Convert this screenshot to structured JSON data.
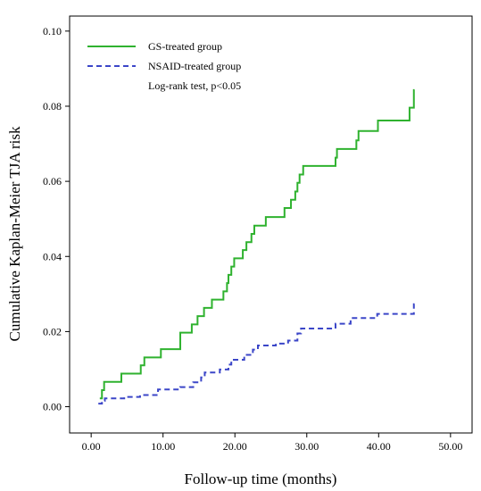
{
  "chart_data": {
    "type": "line",
    "subtype": "step",
    "xlabel": "Follow-up time (months)",
    "ylabel": "Cumulative Kaplan-Meier TJA risk",
    "xlim": [
      -3,
      53
    ],
    "ylim": [
      -0.007,
      0.104
    ],
    "x_ticks": [
      0,
      10,
      20,
      30,
      40,
      50
    ],
    "x_tick_labels": [
      "0.00",
      "10.00",
      "20.00",
      "30.00",
      "40.00",
      "50.00"
    ],
    "y_ticks": [
      0.0,
      0.02,
      0.04,
      0.06,
      0.08,
      0.1
    ],
    "y_tick_labels": [
      "0.00",
      "0.02",
      "0.04",
      "0.06",
      "0.08",
      "0.10"
    ],
    "grid": false,
    "legend_position": "top-left",
    "annotation": "Log-rank test, p<0.05",
    "series": [
      {
        "name": "GS-treated group",
        "color": "#2fb22f",
        "dash": "solid",
        "points": [
          [
            1.2,
            0.0022
          ],
          [
            1.5,
            0.0044
          ],
          [
            1.8,
            0.0066
          ],
          [
            4.2,
            0.0088
          ],
          [
            6.9,
            0.011
          ],
          [
            7.4,
            0.0131
          ],
          [
            9.7,
            0.0153
          ],
          [
            12.4,
            0.0197
          ],
          [
            14.0,
            0.0219
          ],
          [
            14.8,
            0.0241
          ],
          [
            15.7,
            0.0263
          ],
          [
            16.8,
            0.0285
          ],
          [
            18.4,
            0.0307
          ],
          [
            18.9,
            0.0329
          ],
          [
            19.1,
            0.0351
          ],
          [
            19.5,
            0.0373
          ],
          [
            19.9,
            0.0395
          ],
          [
            21.1,
            0.0417
          ],
          [
            21.6,
            0.0438
          ],
          [
            22.3,
            0.046
          ],
          [
            22.7,
            0.0482
          ],
          [
            24.3,
            0.0505
          ],
          [
            26.9,
            0.0529
          ],
          [
            27.8,
            0.0551
          ],
          [
            28.4,
            0.0573
          ],
          [
            28.7,
            0.0596
          ],
          [
            29.0,
            0.0618
          ],
          [
            29.5,
            0.0641
          ],
          [
            34.0,
            0.0663
          ],
          [
            34.2,
            0.0686
          ],
          [
            36.9,
            0.0709
          ],
          [
            37.2,
            0.0734
          ],
          [
            39.9,
            0.0762
          ],
          [
            44.3,
            0.0796
          ],
          [
            44.9,
            0.0843
          ]
        ],
        "end_x": 45.0
      },
      {
        "name": "NSAID-treated group",
        "color": "#3b46c8",
        "dash": "dashed",
        "points": [
          [
            1.0,
            0.0008
          ],
          [
            1.5,
            0.0016
          ],
          [
            1.9,
            0.0022
          ],
          [
            4.6,
            0.0026
          ],
          [
            6.8,
            0.0031
          ],
          [
            9.3,
            0.0046
          ],
          [
            12.4,
            0.0052
          ],
          [
            14.2,
            0.0065
          ],
          [
            15.3,
            0.0078
          ],
          [
            15.8,
            0.0091
          ],
          [
            17.9,
            0.0099
          ],
          [
            19.1,
            0.0112
          ],
          [
            19.5,
            0.0125
          ],
          [
            21.3,
            0.0138
          ],
          [
            22.5,
            0.0152
          ],
          [
            23.2,
            0.0163
          ],
          [
            25.7,
            0.0168
          ],
          [
            27.4,
            0.0176
          ],
          [
            28.7,
            0.0195
          ],
          [
            29.2,
            0.0208
          ],
          [
            34.0,
            0.0221
          ],
          [
            36.1,
            0.0236
          ],
          [
            39.8,
            0.0247
          ],
          [
            44.9,
            0.0273
          ]
        ],
        "end_x": 45.0
      }
    ]
  }
}
